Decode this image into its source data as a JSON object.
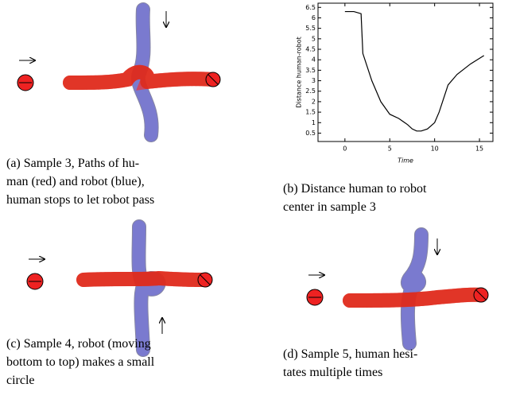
{
  "chart_data": {
    "type": "line",
    "ylabel": "Distance human-robot",
    "xlabel": "Time",
    "x": [
      0,
      1,
      1.8,
      2,
      3,
      4,
      5,
      6,
      7,
      7.5,
      8,
      8.5,
      9.2,
      10,
      10.5,
      11.5,
      12.5,
      14,
      15.5
    ],
    "values": [
      6.3,
      6.3,
      6.2,
      4.3,
      3.0,
      2.0,
      1.4,
      1.2,
      0.9,
      0.7,
      0.6,
      0.6,
      0.7,
      1.0,
      1.5,
      2.8,
      3.3,
      3.8,
      4.2
    ],
    "color": "#000000",
    "xlim": [
      -3,
      16.5
    ],
    "ylim": [
      0.1,
      6.7
    ],
    "xticks": [
      0,
      5,
      10,
      15
    ],
    "yticks": [
      0.5,
      1,
      1.5,
      2,
      2.5,
      3,
      3.5,
      4,
      4.5,
      5,
      5.5,
      6,
      6.5
    ]
  },
  "captions": {
    "a": [
      "(a) Sample 3, Paths of hu-",
      "man (red) and robot (blue),",
      "human stops to let robot pass"
    ],
    "b": [
      "(b) Distance human to robot",
      "center in sample 3"
    ],
    "c": [
      "(c) Sample 4, robot (moving",
      "bottom to top) makes a small",
      "circle"
    ],
    "d": [
      "(d) Sample 5, human hesi-",
      "tates multiple times"
    ]
  }
}
